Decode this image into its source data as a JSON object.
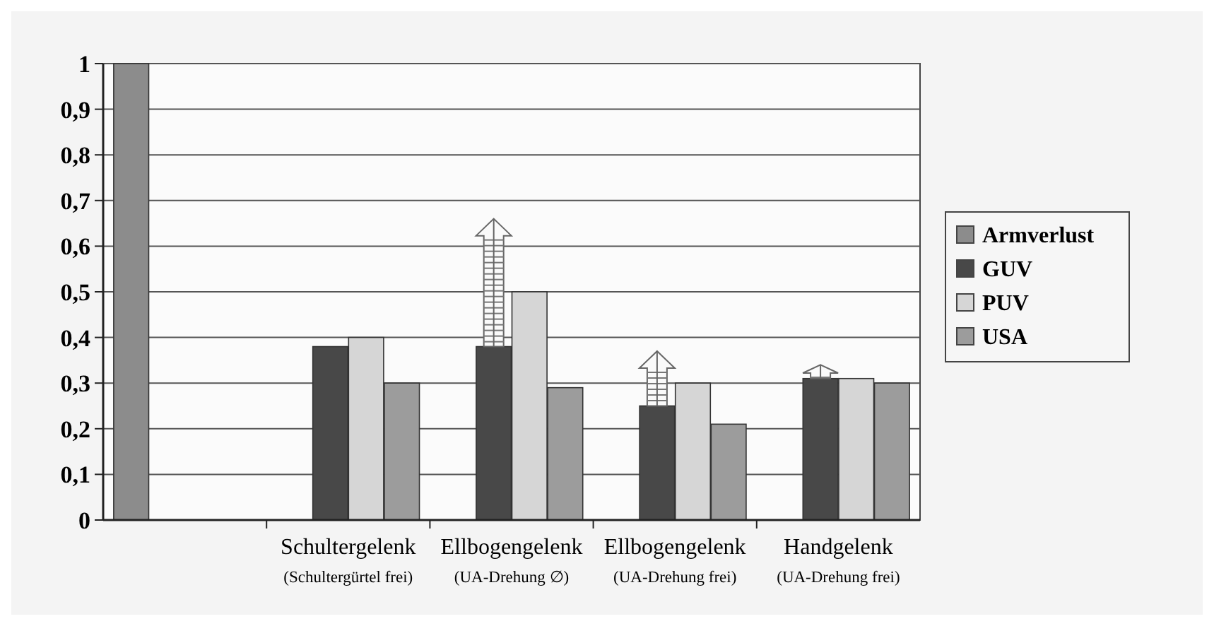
{
  "chart_data": {
    "type": "bar",
    "categories": [
      null,
      "Schultergelenk\n(Schultergürtel frei)",
      "Ellbogengelenk\n(UA-Drehung ∅)",
      "Ellbogengelenk\n(UA-Drehung frei)",
      "Handgelenk\n(UA-Drehung frei)"
    ],
    "series": [
      {
        "name": "Armverlust",
        "color": "#8c8c8c",
        "values": [
          1,
          null,
          null,
          null,
          null
        ]
      },
      {
        "name": "GUV",
        "color": "#484848",
        "values": [
          null,
          0.38,
          0.38,
          0.25,
          0.31
        ],
        "errors": [
          null,
          null,
          [
            0.38,
            0.66
          ],
          [
            0.25,
            0.37
          ],
          [
            0.31,
            0.34
          ]
        ]
      },
      {
        "name": "PUV",
        "color": "#d6d6d6",
        "values": [
          null,
          0.4,
          0.5,
          0.3,
          0.31
        ]
      },
      {
        "name": "USA",
        "color": "#9c9c9c",
        "values": [
          null,
          0.3,
          0.29,
          0.21,
          0.3
        ]
      }
    ],
    "ylim": [
      0,
      1
    ],
    "yticks": [
      0,
      {
        "value": 0.1,
        "label": "0,1"
      },
      {
        "value": 0.2,
        "label": "0,2"
      },
      {
        "value": 0.3,
        "label": "0,3"
      },
      {
        "value": 0.4,
        "label": "0,4"
      },
      {
        "value": 0.5,
        "label": "0,5"
      },
      {
        "value": 0.6,
        "label": "0,6"
      },
      {
        "value": 0.7,
        "label": "0,7"
      },
      {
        "value": 0.8,
        "label": "0,8"
      },
      {
        "value": 0.9,
        "label": "0,9"
      },
      1
    ],
    "grid": "y",
    "legend": "right"
  }
}
